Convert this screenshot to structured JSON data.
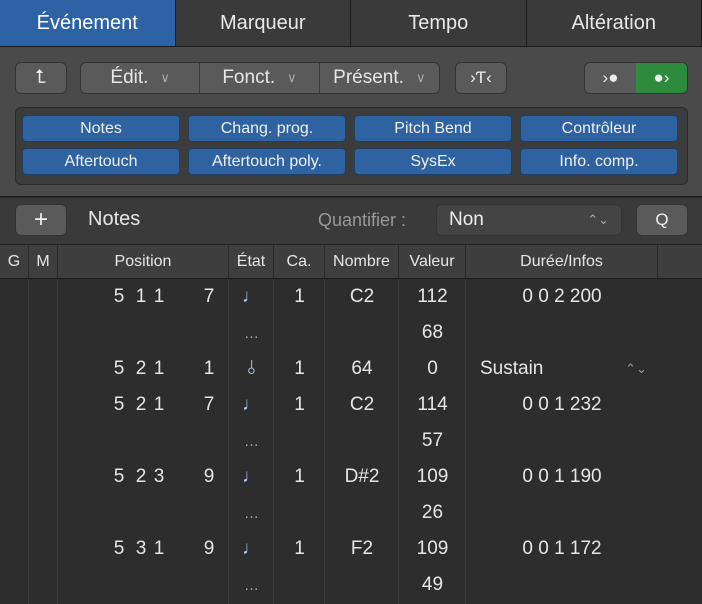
{
  "tabs": [
    "Événement",
    "Marqueur",
    "Tempo",
    "Altération"
  ],
  "toolbar": {
    "edit": "Édit.",
    "functions": "Fonct.",
    "view": "Présent."
  },
  "filters": [
    "Notes",
    "Chang. prog.",
    "Pitch Bend",
    "Contrôleur",
    "Aftertouch",
    "Aftertouch poly.",
    "SysEx",
    "Info. comp."
  ],
  "bar": {
    "type_label": "Notes",
    "quantize_label": "Quantifier :",
    "quantize_value": "Non",
    "q_button": "Q"
  },
  "columns": [
    "G",
    "M",
    "Position",
    "État",
    "Ca.",
    "Nombre",
    "Valeur",
    "Durée/Infos"
  ],
  "events": [
    {
      "position": [
        "5",
        "1",
        "1",
        "7"
      ],
      "state": "note",
      "channel": "1",
      "number": "C2",
      "value": "112",
      "value2": "68",
      "duration": "0 0 2 200"
    },
    {
      "position": [
        "5",
        "2",
        "1",
        "1"
      ],
      "state": "controller",
      "channel": "1",
      "number": "64",
      "value": "0",
      "info": "Sustain"
    },
    {
      "position": [
        "5",
        "2",
        "1",
        "7"
      ],
      "state": "note",
      "channel": "1",
      "number": "C2",
      "value": "114",
      "value2": "57",
      "duration": "0 0 1 232"
    },
    {
      "position": [
        "5",
        "2",
        "3",
        "9"
      ],
      "state": "note",
      "channel": "1",
      "number": "D#2",
      "value": "109",
      "value2": "26",
      "duration": "0 0 1 190"
    },
    {
      "position": [
        "5",
        "3",
        "1",
        "9"
      ],
      "state": "note",
      "channel": "1",
      "number": "F2",
      "value": "109",
      "value2": "49",
      "duration": "0 0 1 172"
    }
  ],
  "ellipsis": "…",
  "colors": {
    "accent": "#2d63a4",
    "midi_out_active": "#2e8b3e"
  }
}
